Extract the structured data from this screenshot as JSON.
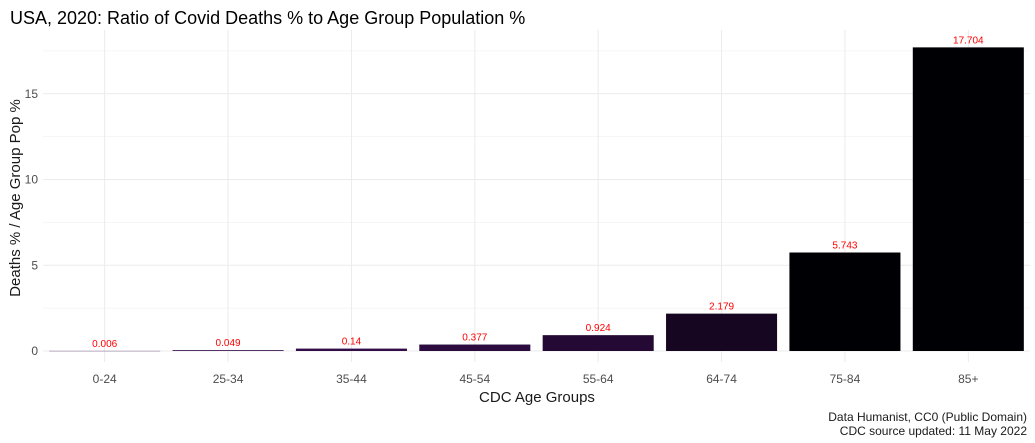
{
  "chart_data": {
    "type": "bar",
    "title": "USA, 2020: Ratio of Covid Deaths % to Age Group Population %",
    "xlabel": "CDC Age Groups",
    "ylabel": "Deaths % / Age Group Pop %",
    "categories": [
      "0-24",
      "25-34",
      "35-44",
      "45-54",
      "55-64",
      "64-74",
      "75-84",
      "85+"
    ],
    "values": [
      0.006,
      0.049,
      0.14,
      0.377,
      0.924,
      2.179,
      5.743,
      17.704
    ],
    "data_labels": [
      "0.006",
      "0.049",
      "0.14",
      "0.377",
      "0.924",
      "2.179",
      "5.743",
      "17.704"
    ],
    "yticks": [
      0,
      5,
      10,
      15
    ],
    "ylim": [
      0,
      18.6
    ],
    "grid": true,
    "bar_fill_low": "#3b1054",
    "bar_fill_high": "#000004",
    "label_color": "#ff0000",
    "caption": [
      "Data Humanist, CC0 (Public Domain)",
      "CDC source updated: 11 May 2022"
    ]
  }
}
